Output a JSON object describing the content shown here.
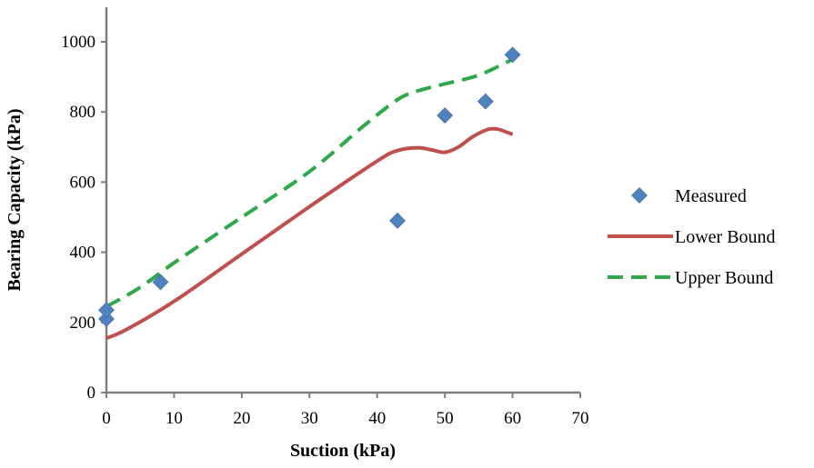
{
  "chart_data": {
    "type": "scatter",
    "xlabel": "Suction (kPa)",
    "ylabel": "Bearing Capacity (kPa)",
    "xlim": [
      0,
      70
    ],
    "ylim": [
      0,
      1000
    ],
    "x_ticks": [
      "0",
      "10",
      "20",
      "30",
      "40",
      "50",
      "60",
      "70"
    ],
    "y_ticks": [
      "0",
      "200",
      "400",
      "600",
      "800",
      "1000"
    ],
    "grid": false,
    "legend_position": "right",
    "series": [
      {
        "name": "Measured",
        "type": "scatter",
        "marker": "diamond",
        "color": "#4F81BD",
        "points": [
          [
            0,
            210
          ],
          [
            0,
            235
          ],
          [
            8,
            315
          ],
          [
            43,
            490
          ],
          [
            50,
            790
          ],
          [
            56,
            830
          ],
          [
            60,
            963
          ]
        ]
      },
      {
        "name": "Lower Bound",
        "type": "line",
        "style": "solid",
        "color": "#C0504D",
        "points": [
          [
            0,
            155
          ],
          [
            3,
            180
          ],
          [
            10,
            260
          ],
          [
            20,
            395
          ],
          [
            30,
            530
          ],
          [
            40,
            660
          ],
          [
            43,
            690
          ],
          [
            46,
            698
          ],
          [
            48,
            692
          ],
          [
            50,
            685
          ],
          [
            52,
            700
          ],
          [
            54,
            728
          ],
          [
            56,
            748
          ],
          [
            57,
            752
          ],
          [
            58,
            750
          ],
          [
            60,
            736
          ]
        ]
      },
      {
        "name": "Upper Bound",
        "type": "line",
        "style": "dashed",
        "color": "#2EA84A",
        "points": [
          [
            0,
            245
          ],
          [
            5,
            300
          ],
          [
            10,
            370
          ],
          [
            20,
            500
          ],
          [
            30,
            630
          ],
          [
            38,
            760
          ],
          [
            43,
            835
          ],
          [
            46,
            860
          ],
          [
            50,
            880
          ],
          [
            55,
            905
          ],
          [
            60,
            950
          ]
        ]
      }
    ]
  }
}
